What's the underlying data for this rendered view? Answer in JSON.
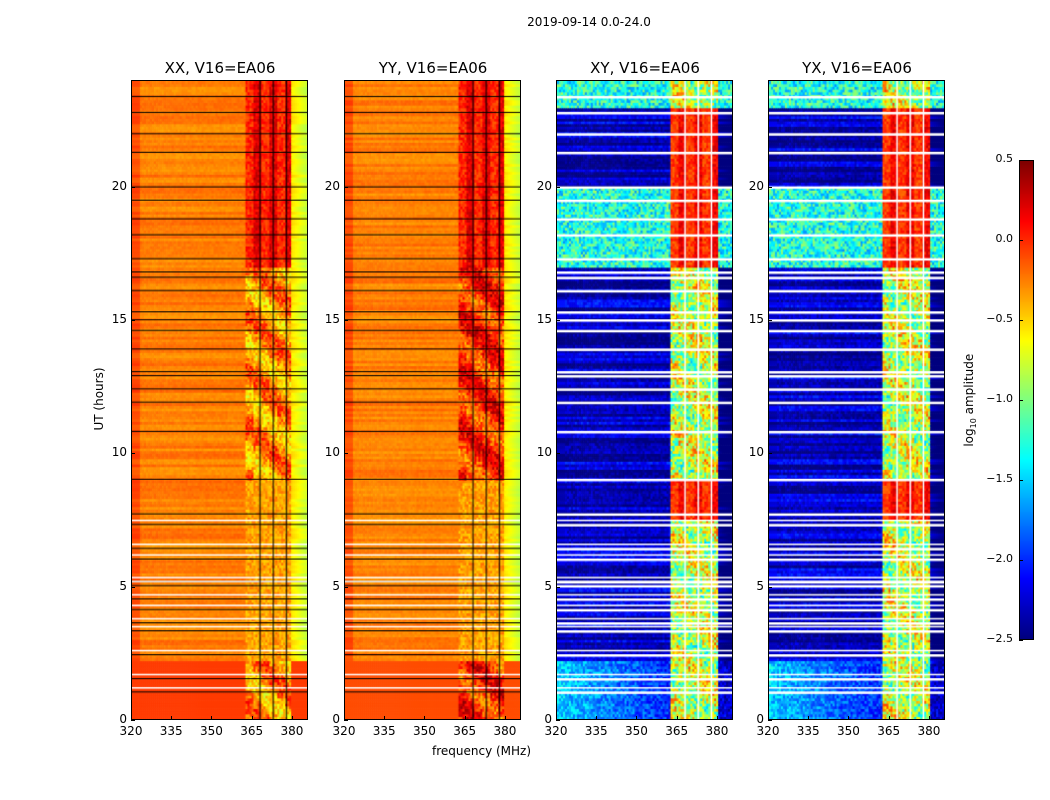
{
  "chart_data": {
    "type": "heatmap",
    "title": "2019-09-14 0.0-24.0",
    "xlabel": "frequency (MHz)",
    "ylabel": "UT (hours)",
    "xlim": [
      320,
      386
    ],
    "ylim": [
      0,
      24
    ],
    "xticks": [
      "320",
      "335",
      "350",
      "365",
      "380"
    ],
    "yticks": [
      "0",
      "5",
      "10",
      "15",
      "20"
    ],
    "colorbar": {
      "label": "log10 amplitude",
      "label_main": "log",
      "label_sub": "10",
      "label_rest": " amplitude",
      "vmin": -2.5,
      "vmax": 0.5,
      "ticks": [
        "0.5",
        "0.0",
        "−0.5",
        "−1.0",
        "−1.5",
        "−2.0",
        "−2.5"
      ],
      "cmap": "jet"
    },
    "panels": [
      {
        "title": "XX, V16=EA06",
        "base": -0.25,
        "edge_low": -0.1,
        "edge_high": -0.55,
        "low_hours_level": -0.05,
        "rfi_band": [
          363,
          380
        ],
        "rfi_level_bright": 0.35,
        "rfi_level_dim": -0.3,
        "rfi_bright_hours": [
          [
            7.5,
            9.0
          ],
          [
            17.0,
            24.0
          ]
        ],
        "flag_color": "black"
      },
      {
        "title": "YY, V16=EA06",
        "base": -0.25,
        "edge_low": -0.1,
        "edge_high": -0.55,
        "low_hours_level": -0.1,
        "rfi_band": [
          363,
          380
        ],
        "rfi_level_bright": 0.35,
        "rfi_level_dim": 0.0,
        "rfi_bright_hours": [
          [
            7.5,
            9.0
          ],
          [
            17.0,
            24.0
          ]
        ],
        "flag_color": "black"
      },
      {
        "title": "XY, V16=EA06",
        "base": -2.3,
        "edge_low": -2.3,
        "edge_high": -2.4,
        "low_hours_level": -1.5,
        "rfi_band": [
          363,
          381
        ],
        "rfi_level_bright": 0.3,
        "rfi_level_dim": -0.8,
        "rfi_bright_hours": [
          [
            7.5,
            9.0
          ],
          [
            17.0,
            23.0
          ]
        ],
        "flag_color": "white"
      },
      {
        "title": "YX, V16=EA06",
        "base": -2.3,
        "edge_low": -2.3,
        "edge_high": -2.4,
        "low_hours_level": -1.5,
        "rfi_band": [
          363,
          381
        ],
        "rfi_level_bright": 0.3,
        "rfi_level_dim": -0.8,
        "rfi_bright_hours": [
          [
            7.5,
            9.0
          ],
          [
            17.0,
            23.0
          ]
        ],
        "flag_color": "white"
      }
    ],
    "cross_hand_bright_hours": [
      [
        17.0,
        20.0
      ],
      [
        23.0,
        24.0
      ]
    ],
    "flagged_hours": [
      1.0,
      1.5,
      2.4,
      3.3,
      3.6,
      4.1,
      4.5,
      5.0,
      5.15,
      6.0,
      6.4,
      7.3,
      7.7,
      9.0,
      10.8,
      11.9,
      12.4,
      12.9,
      13.05,
      13.9,
      14.6,
      15.0,
      15.3,
      16.1,
      16.6,
      16.8,
      17.3,
      18.2,
      18.8,
      19.5,
      20.0,
      21.3,
      22.0,
      22.8,
      23.4
    ],
    "flagged_channels_mhz": [
      368,
      373,
      378
    ]
  }
}
